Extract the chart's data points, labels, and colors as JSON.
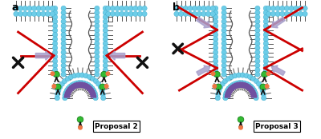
{
  "fig_width": 4.0,
  "fig_height": 1.74,
  "dpi": 100,
  "bg_color": "#ffffff",
  "membrane_color": "#6dcde8",
  "actin_wave_color": "#555555",
  "red_color": "#cc0000",
  "arrow_color": "#a8a0cc",
  "purple_color": "#7050a0",
  "green_color": "#33bb33",
  "orange_color": "#ee7744",
  "black_color": "#111111",
  "label_a": "a",
  "label_b": "b",
  "title2": "Proposal 2",
  "title3": "Proposal 3"
}
